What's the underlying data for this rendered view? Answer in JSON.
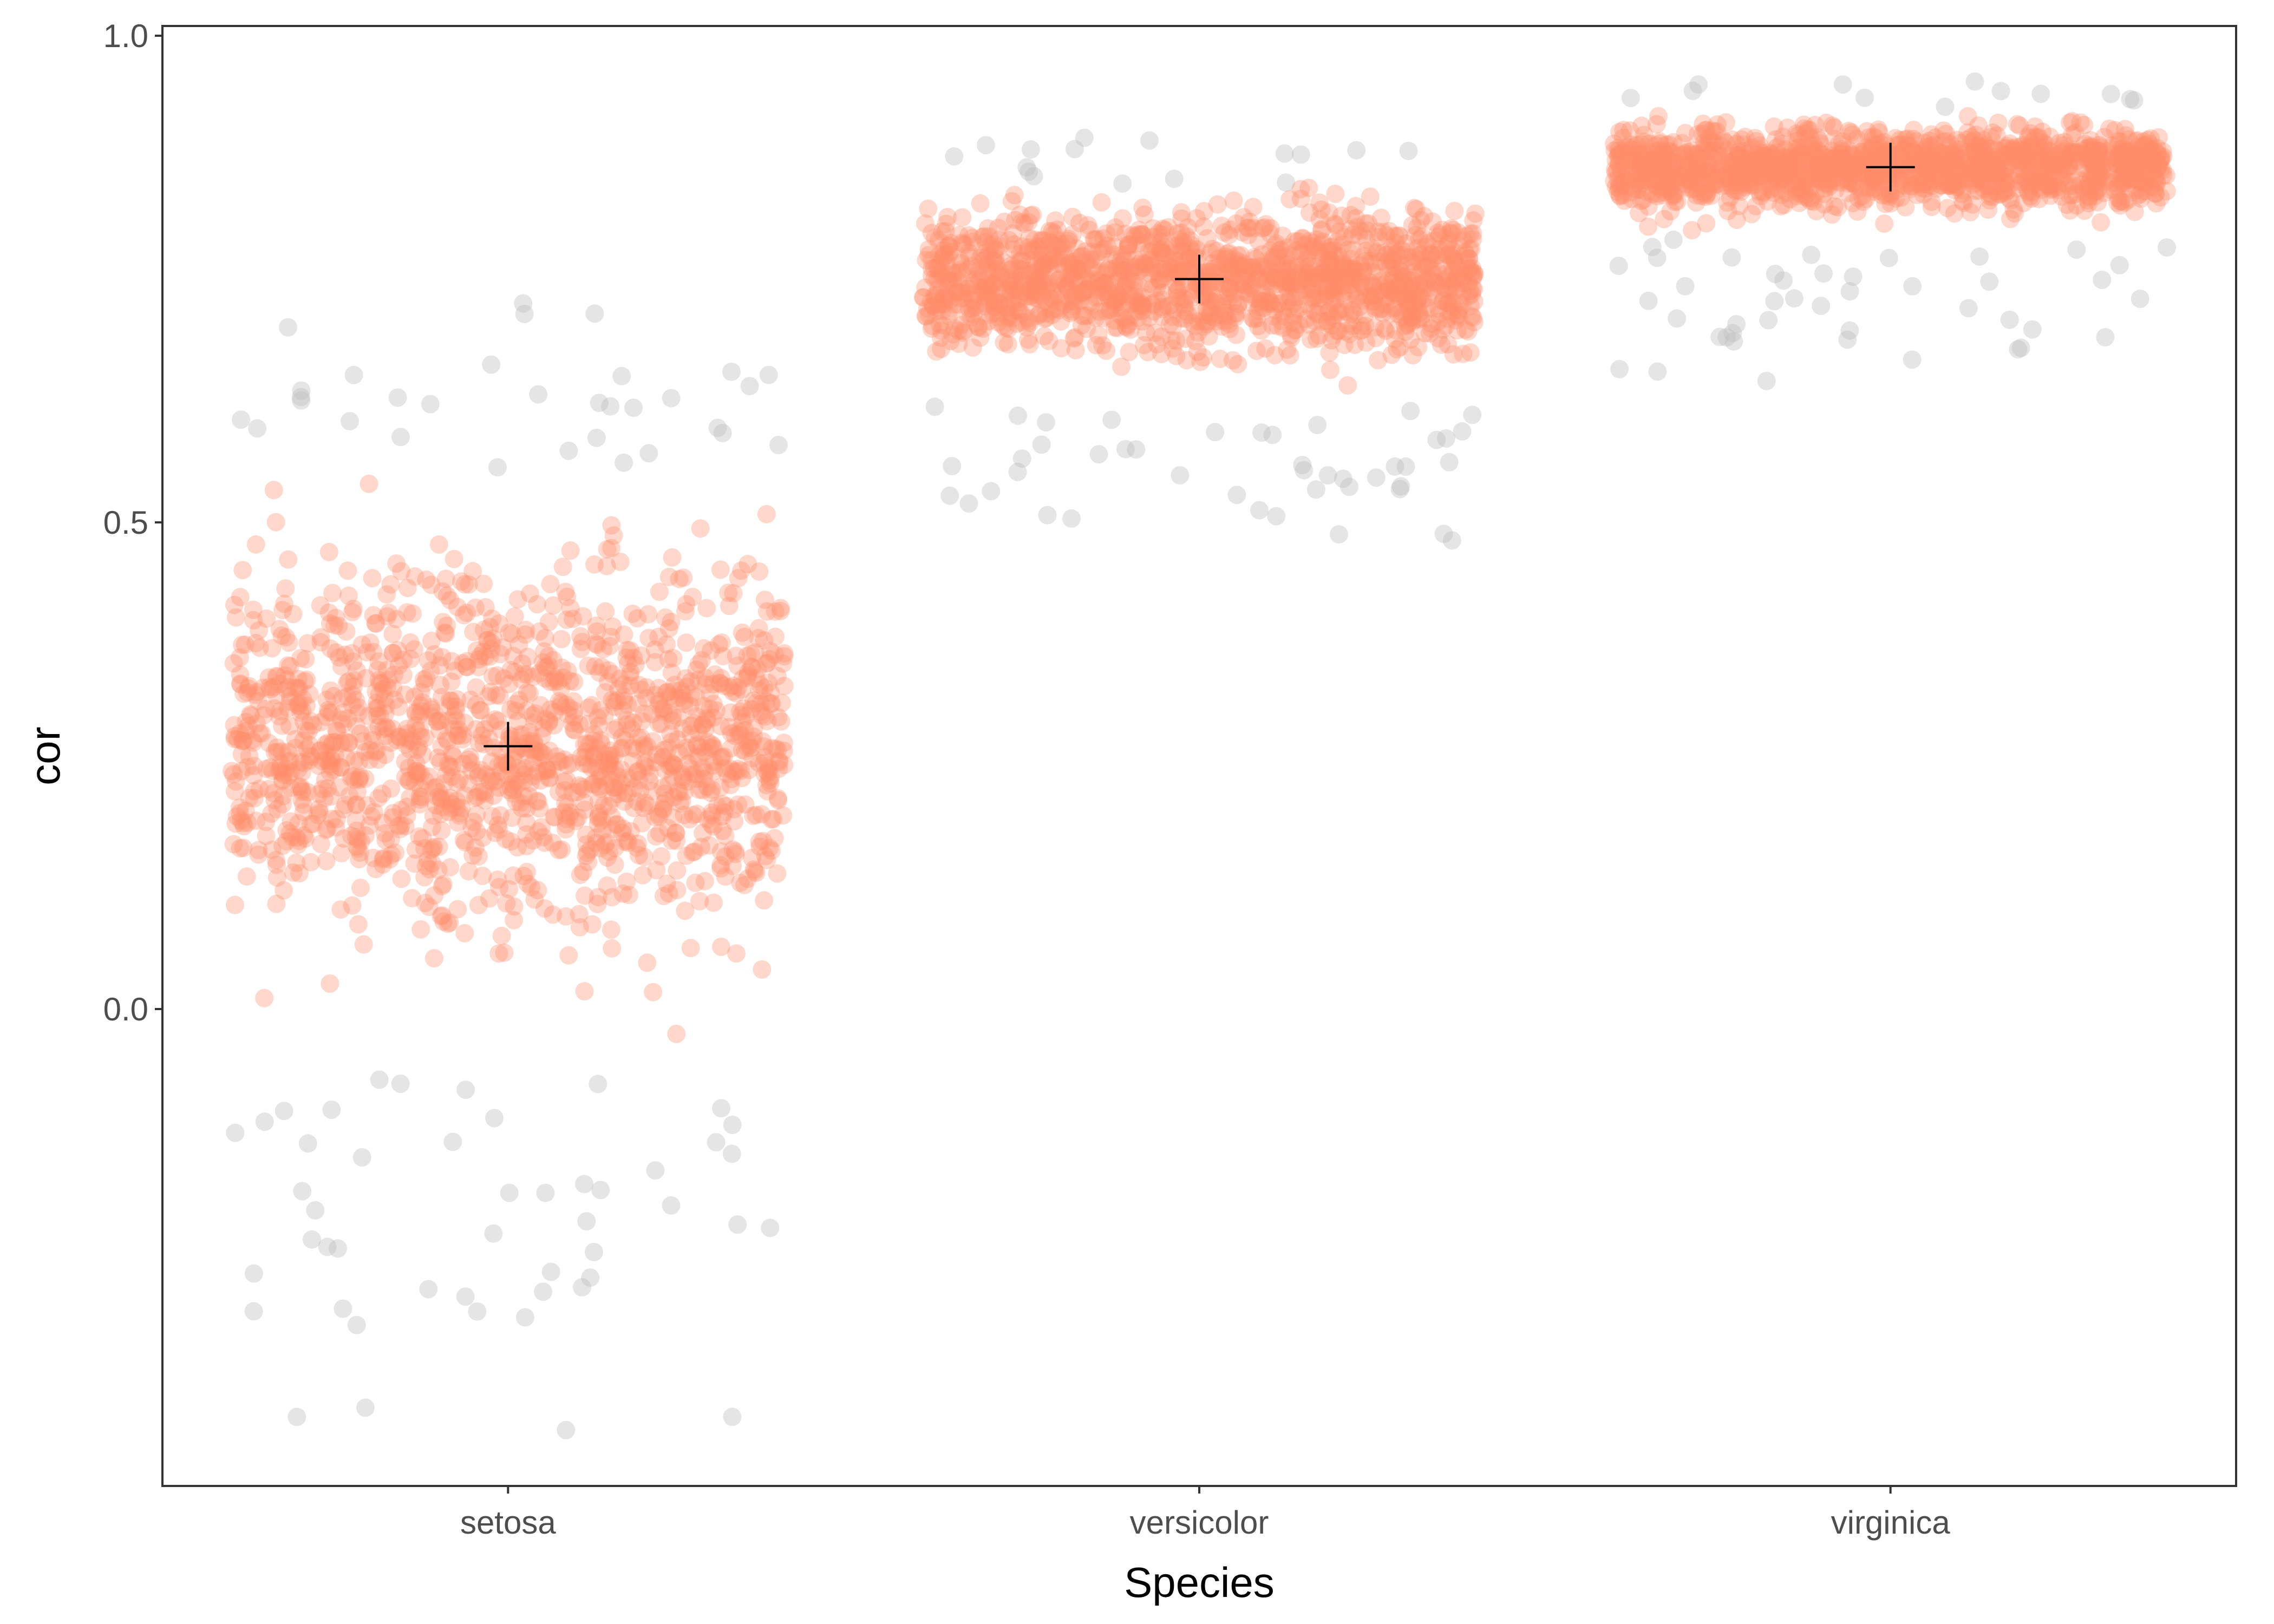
{
  "chart_data": {
    "type": "scatter",
    "subtype": "jitter-strip",
    "title": "",
    "xlabel": "Species",
    "ylabel": "cor",
    "categories": [
      "setosa",
      "versicolor",
      "virginica"
    ],
    "ylim": [
      -0.49,
      1.01
    ],
    "yticks": [
      0.0,
      0.5,
      1.0
    ],
    "ytick_labels": [
      "0.0",
      "0.5",
      "1.0"
    ],
    "grid": false,
    "legend": "none",
    "colors": {
      "inner": "#ff8c69",
      "outer": "#bebebe",
      "mean_marker": "#000000",
      "axis": "#333333"
    },
    "groups": [
      {
        "category": "setosa",
        "mean": 0.27,
        "inner_range": [
          -0.04,
          0.55
        ],
        "outer_range": [
          -0.42,
          0.72
        ],
        "outlier_low": [
          -0.42,
          -0.32,
          -0.3,
          -0.28,
          -0.25,
          -0.22,
          -0.2,
          -0.18,
          -0.15,
          -0.13,
          -0.1,
          -0.08
        ],
        "outlier_high": [
          0.57,
          0.59,
          0.6,
          0.62,
          0.63,
          0.64,
          0.65,
          0.71
        ]
      },
      {
        "category": "versicolor",
        "mean": 0.75,
        "inner_range": [
          0.62,
          0.85
        ],
        "outer_range": [
          0.49,
          0.89
        ],
        "outlier_low": [
          0.49,
          0.51,
          0.53,
          0.54,
          0.55,
          0.56,
          0.57,
          0.58,
          0.59,
          0.6,
          0.61
        ],
        "outlier_high": [
          0.86,
          0.87,
          0.88,
          0.89
        ]
      },
      {
        "category": "virginica",
        "mean": 0.865,
        "inner_range": [
          0.79,
          0.92
        ],
        "outer_range": [
          0.66,
          0.945
        ],
        "outlier_low": [
          0.66,
          0.68,
          0.69,
          0.7,
          0.72,
          0.73,
          0.74,
          0.75,
          0.76,
          0.77,
          0.78
        ],
        "outlier_high": [
          0.93,
          0.94,
          0.945
        ]
      }
    ]
  }
}
